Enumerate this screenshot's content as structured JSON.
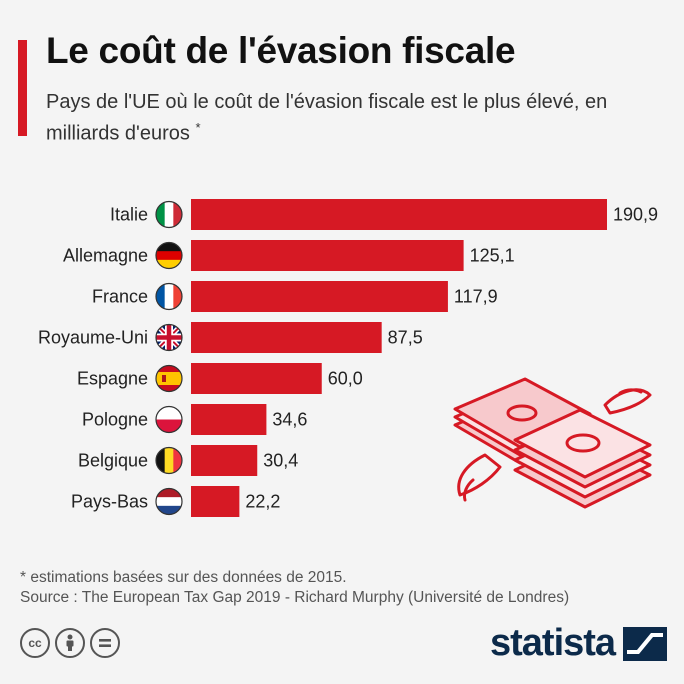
{
  "header": {
    "title": "Le coût de l'évasion fiscale",
    "subtitle": "Pays de l'UE où le coût de l'évasion fiscale est le plus élevé, en milliards d'euros",
    "subtitle_mark": "*"
  },
  "chart_data": {
    "type": "bar",
    "orientation": "horizontal",
    "categories": [
      "Italie",
      "Allemagne",
      "France",
      "Royaume-Uni",
      "Espagne",
      "Pologne",
      "Belgique",
      "Pays-Bas"
    ],
    "values": [
      190.9,
      125.1,
      117.9,
      87.5,
      60.0,
      34.6,
      30.4,
      22.2
    ],
    "value_labels": [
      "190,9",
      "125,1",
      "117,9",
      "87,5",
      "60,0",
      "34,6",
      "30,4",
      "22,2"
    ],
    "flags": [
      "it-flag-icon",
      "de-flag-icon",
      "fr-flag-icon",
      "uk-flag-icon",
      "es-flag-icon",
      "pl-flag-icon",
      "be-flag-icon",
      "nl-flag-icon"
    ],
    "xlim": [
      0,
      190.9
    ],
    "bar_color": "#d61924",
    "grid": false
  },
  "illustration": "flying-money-icon",
  "footer": {
    "note": "* estimations basées sur des données de 2015.",
    "source": "Source : The European Tax Gap 2019 - Richard Murphy (Université de Londres)",
    "brand": "statista",
    "license_icons": [
      "cc-icon",
      "by-icon",
      "nd-icon"
    ]
  },
  "colors": {
    "accent": "#d61924",
    "brand": "#0c2a4a"
  }
}
